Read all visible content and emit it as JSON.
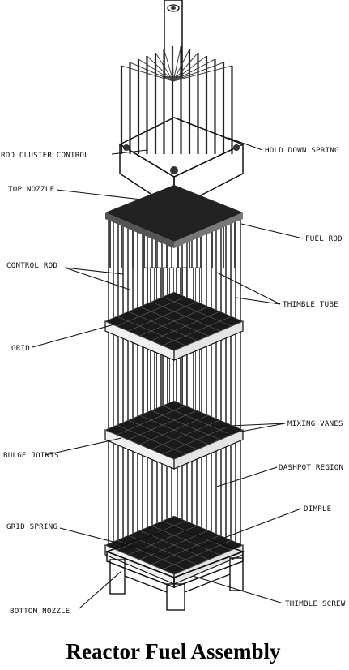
{
  "title": "Reactor Fuel Assembly",
  "labels": {
    "rod_cluster_control": "ROD CLUSTER CONTROL",
    "hold_down_spring": "HOLD DOWN SPRING",
    "top_nozzle": "TOP NOZZLE",
    "fuel_rod": "FUEL ROD",
    "control_rod": "CONTROL ROD",
    "thimble_tube": "THIMBLE TUBE",
    "grid": "GRID",
    "mixing_vanes": "MIXING VANES",
    "bulge_joints": "BULGE JOINTS",
    "dashpot_region": "DASHPOT REGION",
    "grid_spring": "GRID SPRING",
    "dimple": "DIMPLE",
    "bottom_nozzle": "BOTTOM NOZZLE",
    "thimble_screw": "THIMBLE SCREW"
  }
}
